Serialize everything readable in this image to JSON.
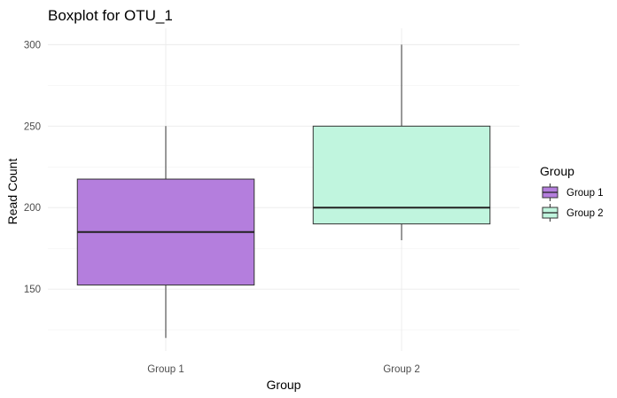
{
  "chart_data": {
    "type": "boxplot",
    "title": "Boxplot for OTU_1",
    "xlabel": "Group",
    "ylabel": "Read Count",
    "categories": [
      "Group 1",
      "Group 2"
    ],
    "ylim": [
      112,
      310
    ],
    "yticks": [
      150,
      200,
      250,
      300
    ],
    "grid": true,
    "legend": {
      "title": "Group",
      "position": "right",
      "entries": [
        "Group 1",
        "Group 2"
      ]
    },
    "boxes": [
      {
        "name": "Group 1",
        "min": 120,
        "q1": 152.5,
        "median": 185,
        "q3": 217.5,
        "max": 250,
        "color": "#b47edd"
      },
      {
        "name": "Group 2",
        "min": 180,
        "q1": 190,
        "median": 200,
        "q3": 250,
        "max": 300,
        "color": "#c0f5de"
      }
    ]
  }
}
